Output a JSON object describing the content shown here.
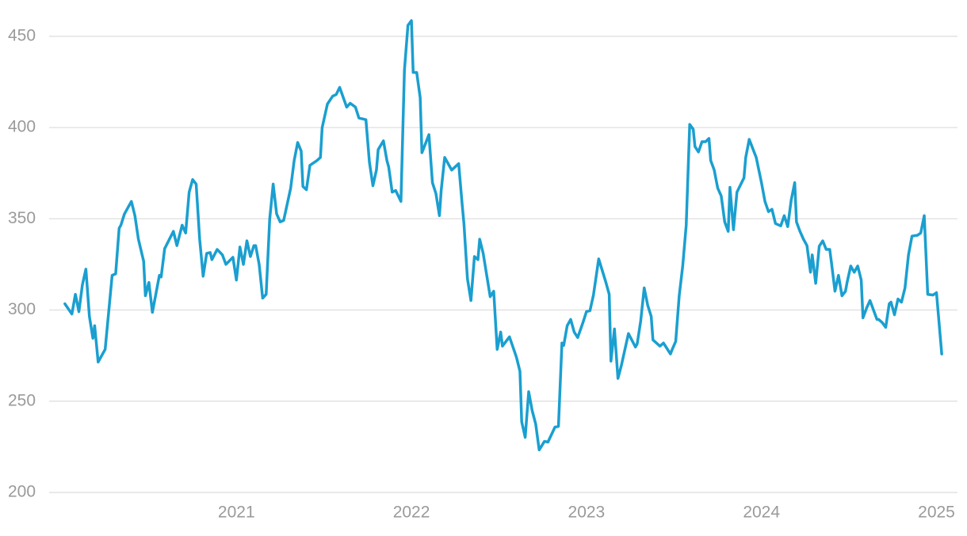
{
  "chart_data": {
    "type": "line",
    "color": "#1a9fd0",
    "grid": true,
    "xlim": [
      2019.93,
      2025.12
    ],
    "xticks": [
      2021,
      2022,
      2023,
      2024,
      2025
    ],
    "ylim": [
      200,
      460
    ],
    "yticks": [
      200,
      250,
      300,
      350,
      400,
      450
    ],
    "x": [
      2020.02,
      2020.06,
      2020.08,
      2020.1,
      2020.12,
      2020.14,
      2020.16,
      2020.18,
      2020.19,
      2020.21,
      2020.25,
      2020.29,
      2020.31,
      2020.33,
      2020.34,
      2020.36,
      2020.4,
      2020.42,
      2020.44,
      2020.47,
      2020.48,
      2020.5,
      2020.52,
      2020.56,
      2020.57,
      2020.59,
      2020.64,
      2020.66,
      2020.69,
      2020.71,
      2020.73,
      2020.75,
      2020.77,
      2020.79,
      2020.81,
      2020.83,
      2020.85,
      2020.86,
      2020.89,
      2020.92,
      2020.94,
      2020.98,
      2021.0,
      2021.02,
      2021.04,
      2021.06,
      2021.08,
      2021.1,
      2021.11,
      2021.13,
      2021.15,
      2021.17,
      2021.19,
      2021.21,
      2021.23,
      2021.25,
      2021.27,
      2021.31,
      2021.33,
      2021.35,
      2021.37,
      2021.38,
      2021.4,
      2021.42,
      2021.46,
      2021.48,
      2021.49,
      2021.52,
      2021.55,
      2021.57,
      2021.59,
      2021.63,
      2021.65,
      2021.68,
      2021.7,
      2021.74,
      2021.76,
      2021.78,
      2021.8,
      2021.81,
      2021.84,
      2021.86,
      2021.87,
      2021.89,
      2021.91,
      2021.94,
      2021.96,
      2021.98,
      2022.0,
      2022.01,
      2022.03,
      2022.05,
      2022.06,
      2022.1,
      2022.12,
      2022.14,
      2022.16,
      2022.17,
      2022.19,
      2022.23,
      2022.27,
      2022.29,
      2022.3,
      2022.32,
      2022.34,
      2022.36,
      2022.38,
      2022.39,
      2022.41,
      2022.45,
      2022.47,
      2022.49,
      2022.51,
      2022.52,
      2022.56,
      2022.6,
      2022.62,
      2022.63,
      2022.65,
      2022.67,
      2022.69,
      2022.71,
      2022.73,
      2022.76,
      2022.78,
      2022.82,
      2022.84,
      2022.86,
      2022.87,
      2022.89,
      2022.91,
      2022.93,
      2022.95,
      2022.98,
      2023.0,
      2023.02,
      2023.04,
      2023.07,
      2023.11,
      2023.13,
      2023.14,
      2023.16,
      2023.18,
      2023.2,
      2023.24,
      2023.28,
      2023.29,
      2023.31,
      2023.33,
      2023.35,
      2023.37,
      2023.38,
      2023.42,
      2023.44,
      2023.48,
      2023.49,
      2023.51,
      2023.53,
      2023.55,
      2023.57,
      2023.59,
      2023.61,
      2023.62,
      2023.64,
      2023.66,
      2023.68,
      2023.7,
      2023.71,
      2023.73,
      2023.75,
      2023.77,
      2023.79,
      2023.81,
      2023.82,
      2023.84,
      2023.86,
      2023.9,
      2023.91,
      2023.93,
      2023.97,
      2024.0,
      2024.02,
      2024.04,
      2024.06,
      2024.08,
      2024.11,
      2024.13,
      2024.15,
      2024.17,
      2024.19,
      2024.2,
      2024.22,
      2024.24,
      2024.26,
      2024.28,
      2024.29,
      2024.31,
      2024.33,
      2024.35,
      2024.37,
      2024.39,
      2024.4,
      2024.42,
      2024.44,
      2024.46,
      2024.48,
      2024.49,
      2024.51,
      2024.53,
      2024.55,
      2024.57,
      2024.58,
      2024.6,
      2024.62,
      2024.66,
      2024.67,
      2024.69,
      2024.71,
      2024.73,
      2024.74,
      2024.76,
      2024.78,
      2024.8,
      2024.82,
      2024.84,
      2024.86,
      2024.89,
      2024.91,
      2024.93,
      2024.95,
      2024.98,
      2025.0,
      2025.03
    ],
    "values": [
      303.4,
      297.8,
      308.6,
      299.1,
      313.8,
      322.4,
      296.5,
      284.5,
      291.4,
      271.5,
      278.4,
      319.0,
      319.8,
      344.8,
      346.5,
      352.6,
      359.5,
      351.7,
      338.8,
      326.7,
      307.8,
      315.1,
      298.7,
      319.0,
      318.1,
      333.6,
      343.1,
      335.3,
      346.5,
      342.2,
      364.6,
      371.5,
      369.0,
      338.8,
      318.5,
      331.0,
      331.5,
      327.6,
      333.2,
      330.2,
      325.0,
      328.9,
      316.4,
      334.5,
      325.0,
      337.9,
      329.3,
      335.3,
      335.3,
      325.0,
      306.5,
      308.6,
      349.6,
      369.0,
      352.6,
      348.3,
      349.1,
      366.8,
      381.9,
      391.8,
      387.1,
      367.7,
      365.9,
      379.3,
      381.9,
      383.6,
      400.0,
      412.9,
      417.2,
      418.1,
      422.0,
      411.2,
      413.3,
      411.2,
      405.2,
      404.3,
      381.0,
      368.1,
      376.7,
      387.9,
      392.7,
      381.9,
      378.4,
      364.6,
      365.5,
      359.5,
      431.4,
      456.0,
      458.6,
      430.2,
      430.2,
      416.4,
      386.2,
      396.1,
      369.8,
      363.8,
      351.7,
      365.5,
      383.6,
      376.7,
      380.2,
      357.7,
      347.4,
      317.2,
      305.2,
      329.3,
      327.6,
      338.8,
      331.0,
      307.3,
      310.3,
      278.4,
      287.9,
      280.2,
      285.3,
      274.1,
      266.4,
      238.8,
      230.2,
      255.2,
      244.8,
      237.5,
      223.3,
      228.0,
      227.6,
      235.8,
      236.2,
      281.9,
      280.6,
      291.4,
      294.8,
      287.9,
      284.9,
      293.1,
      299.1,
      299.6,
      308.2,
      328.0,
      315.5,
      308.6,
      272.0,
      289.6,
      262.5,
      269.8,
      287.1,
      279.7,
      281.5,
      294.0,
      312.1,
      302.6,
      296.5,
      283.6,
      280.2,
      281.9,
      275.9,
      278.4,
      282.8,
      307.8,
      324.1,
      346.5,
      401.7,
      399.1,
      389.6,
      386.6,
      392.2,
      392.2,
      394.0,
      381.9,
      376.7,
      366.8,
      362.5,
      348.3,
      343.1,
      367.2,
      344.0,
      364.6,
      372.4,
      383.6,
      393.5,
      383.6,
      369.8,
      359.5,
      353.9,
      355.2,
      347.4,
      346.1,
      351.7,
      345.7,
      360.3,
      369.8,
      348.3,
      343.1,
      338.8,
      335.3,
      320.7,
      330.2,
      314.6,
      334.9,
      337.9,
      333.2,
      333.2,
      325.9,
      310.3,
      319.0,
      307.8,
      310.3,
      315.5,
      324.1,
      320.7,
      324.1,
      316.4,
      295.7,
      300.9,
      305.2,
      294.8,
      294.8,
      293.1,
      290.5,
      303.4,
      304.3,
      297.4,
      306.0,
      304.3,
      312.1,
      330.2,
      340.5,
      340.9,
      342.2,
      351.7,
      308.6,
      308.2,
      309.5,
      275.9
    ]
  }
}
